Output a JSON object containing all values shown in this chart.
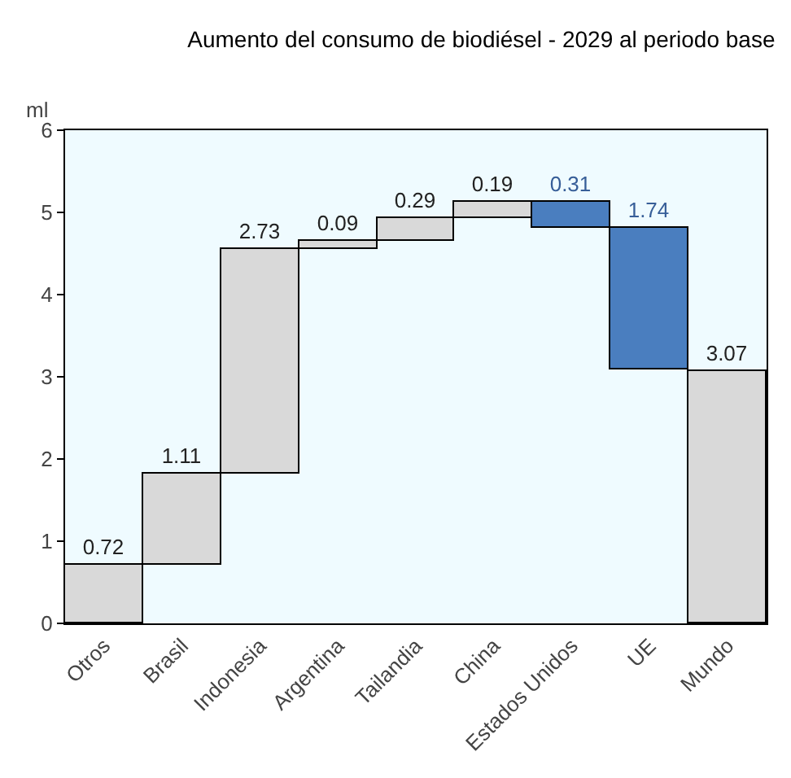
{
  "chart_data": {
    "type": "bar",
    "title": "Aumento del consumo de biodiésel - 2029 al periodo base",
    "ylabel": "ml",
    "categories": [
      "Otros",
      "Brasil",
      "Indonesia",
      "Argentina",
      "Tailandia",
      "China",
      "Estados Unidos",
      "UE",
      "Mundo"
    ],
    "values": [
      0.72,
      1.11,
      2.73,
      0.09,
      0.29,
      0.19,
      0.31,
      1.74,
      3.07
    ],
    "base": [
      0,
      0.72,
      1.83,
      4.56,
      4.65,
      4.94,
      4.82,
      3.08,
      0
    ],
    "colors": [
      "#d9d9d9",
      "#d9d9d9",
      "#d9d9d9",
      "#d9d9d9",
      "#d9d9d9",
      "#d9d9d9",
      "#4a7ebf",
      "#4a7ebf",
      "#d9d9d9"
    ],
    "ylim": [
      0,
      6
    ],
    "yticks": [
      0,
      1,
      2,
      3,
      4,
      5,
      6
    ],
    "data_labels": true
  }
}
